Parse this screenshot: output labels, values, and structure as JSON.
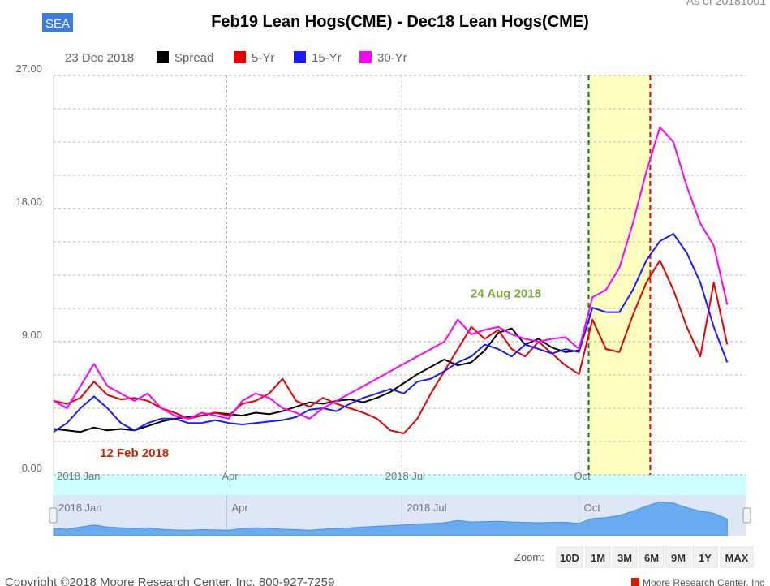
{
  "chart_data": {
    "type": "line",
    "title": "Feb19 Lean Hogs(CME) - Dec18 Lean Hogs(CME)",
    "date_label": "23 Dec 2018",
    "x": [
      "2018-01-01",
      "2018-01-08",
      "2018-01-15",
      "2018-01-22",
      "2018-01-29",
      "2018-02-05",
      "2018-02-12",
      "2018-02-19",
      "2018-02-26",
      "2018-03-05",
      "2018-03-12",
      "2018-03-19",
      "2018-03-26",
      "2018-04-02",
      "2018-04-09",
      "2018-04-16",
      "2018-04-23",
      "2018-04-30",
      "2018-05-07",
      "2018-05-14",
      "2018-05-21",
      "2018-05-28",
      "2018-06-04",
      "2018-06-11",
      "2018-06-18",
      "2018-06-25",
      "2018-07-02",
      "2018-07-09",
      "2018-07-16",
      "2018-07-23",
      "2018-07-30",
      "2018-08-06",
      "2018-08-13",
      "2018-08-20",
      "2018-08-27",
      "2018-09-03",
      "2018-09-10",
      "2018-09-17",
      "2018-09-24",
      "2018-10-01",
      "2018-10-08",
      "2018-10-15",
      "2018-10-22",
      "2018-10-29",
      "2018-11-05",
      "2018-11-12",
      "2018-11-19",
      "2018-11-26",
      "2018-12-03",
      "2018-12-10",
      "2018-12-17"
    ],
    "series": [
      {
        "name": "Spread",
        "color": "#000000",
        "values": [
          3.1,
          3.0,
          2.9,
          3.2,
          3.0,
          3.1,
          3.0,
          3.3,
          3.6,
          3.8,
          3.9,
          4.0,
          4.2,
          4.1,
          4.0,
          4.2,
          4.1,
          4.3,
          4.6,
          4.9,
          4.8,
          5.0,
          5.1,
          4.9,
          5.2,
          5.6,
          6.2,
          6.8,
          7.3,
          7.8,
          7.4,
          7.6,
          8.4,
          9.6,
          9.9,
          8.8,
          9.2,
          8.6,
          8.3,
          8.4,
          null,
          null,
          null,
          null,
          null,
          null,
          null,
          null,
          null,
          null,
          null
        ]
      },
      {
        "name": "5-Yr",
        "color": "#e60000",
        "values": [
          5.0,
          4.8,
          5.2,
          6.3,
          5.4,
          5.1,
          5.2,
          5.0,
          4.5,
          4.2,
          3.8,
          4.0,
          4.2,
          4.0,
          4.8,
          5.0,
          5.5,
          6.5,
          5.0,
          4.6,
          5.2,
          4.8,
          4.5,
          4.2,
          3.8,
          3.0,
          2.8,
          3.8,
          5.5,
          7.0,
          8.5,
          10.0,
          9.2,
          9.8,
          8.5,
          8.0,
          9.0,
          8.2,
          7.4,
          6.8,
          10.5,
          8.5,
          8.3,
          10.8,
          13.0,
          14.5,
          12.5,
          10.0,
          8.0,
          13.0,
          8.8
        ]
      },
      {
        "name": "15-Yr",
        "color": "#1a1aff",
        "values": [
          2.9,
          3.5,
          4.5,
          5.3,
          4.5,
          3.5,
          3.0,
          3.5,
          3.8,
          3.8,
          3.5,
          3.5,
          3.7,
          3.5,
          3.4,
          3.5,
          3.6,
          3.7,
          3.9,
          4.4,
          4.5,
          4.3,
          4.8,
          5.2,
          5.5,
          5.8,
          5.5,
          6.3,
          6.5,
          7.0,
          7.6,
          8.0,
          8.8,
          8.5,
          8.0,
          8.8,
          8.5,
          8.2,
          8.5,
          8.3,
          11.3,
          11.0,
          11.0,
          12.5,
          14.5,
          15.8,
          16.3,
          15.0,
          13.0,
          10.0,
          7.6
        ]
      },
      {
        "name": "30-Yr",
        "color": "#ff00ff",
        "values": [
          5.0,
          4.5,
          6.0,
          7.5,
          6.0,
          5.5,
          5.0,
          5.5,
          4.5,
          4.0,
          3.8,
          4.2,
          4.0,
          3.8,
          5.0,
          5.5,
          5.2,
          4.5,
          4.2,
          3.8,
          4.5,
          5.0,
          5.5,
          6.0,
          6.5,
          7.0,
          7.5,
          8.0,
          8.5,
          9.0,
          10.5,
          9.5,
          9.8,
          10.0,
          9.5,
          9.2,
          9.0,
          9.2,
          9.3,
          8.5,
          12.0,
          12.5,
          14.0,
          17.0,
          20.5,
          23.5,
          22.5,
          19.5,
          17.0,
          15.5,
          11.5
        ]
      }
    ],
    "xlim": [
      "2018-01-01",
      "2018-12-27"
    ],
    "xticks": [
      {
        "value": "2018-01-01",
        "label": "2018 Jan"
      },
      {
        "value": "2018-04-01",
        "label": "Apr"
      },
      {
        "value": "2018-07-01",
        "label": "2018 Jul"
      },
      {
        "value": "2018-10-01",
        "label": "Oct"
      }
    ],
    "ylim": [
      0,
      27
    ],
    "yticks": [
      {
        "value": 0,
        "label": "0.00"
      },
      {
        "value": 9,
        "label": "9.00"
      },
      {
        "value": 18,
        "label": "18.00"
      },
      {
        "value": 27,
        "label": "27.00"
      }
    ],
    "yminorticks": [
      2.25,
      4.5,
      6.75,
      11.25,
      13.5,
      15.75,
      20.25,
      22.5,
      24.75
    ],
    "grid": true,
    "highlight": {
      "start": "2018-10-06",
      "end": "2018-11-07",
      "fill": "#ffffc0",
      "start_color": "#008000",
      "end_color": "#e60000"
    },
    "annotations": [
      {
        "text": "12 Feb 2018",
        "x": "2018-02-12",
        "y": 1.2,
        "color": "#cc2200"
      },
      {
        "text": "24 Aug 2018",
        "x": "2018-08-24",
        "y": 12.0,
        "color": "#7aa83a"
      }
    ],
    "navigator_series": 3
  },
  "ui": {
    "badge": "SEA",
    "as_of": "As of 20181001",
    "zoom_label": "Zoom:",
    "zoom_buttons": [
      "10D",
      "1M",
      "3M",
      "6M",
      "9M",
      "1Y",
      "MAX"
    ],
    "copyright": "Copyright ©2018 Moore Research Center, Inc. 800-927-7259",
    "brand": "Moore Research Center, Inc"
  }
}
